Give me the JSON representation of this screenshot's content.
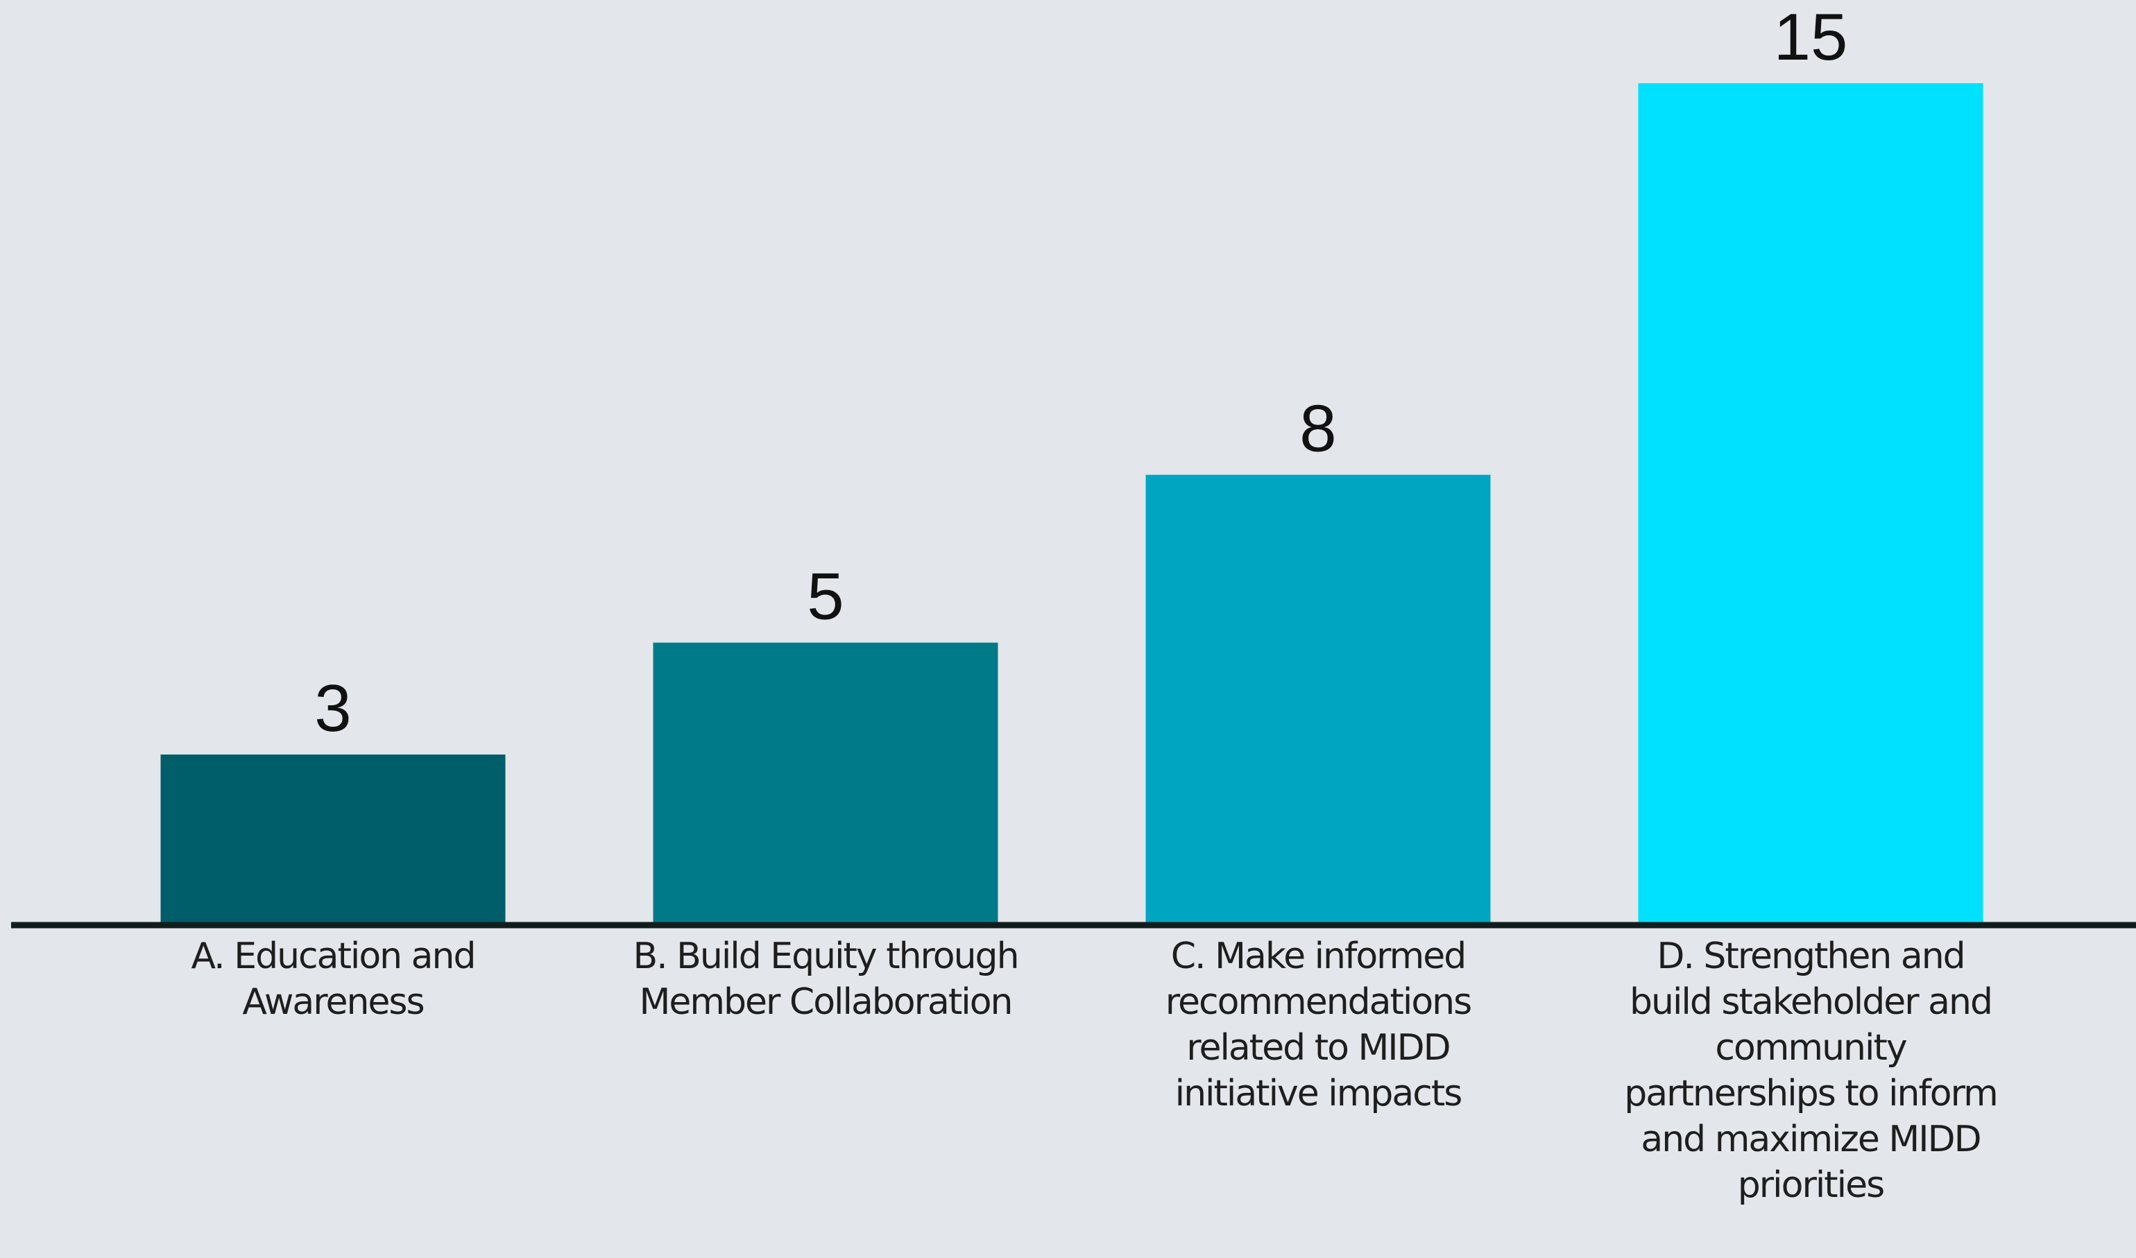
{
  "chart_data": {
    "type": "bar",
    "categories": [
      "A. Education and Awareness",
      "B. Build Equity through Member Collaboration",
      "C. Make informed recommendations related to MIDD initiative impacts",
      "D. Strengthen and build stakeholder and community partnerships to inform and maximize MIDD priorities"
    ],
    "values": [
      3,
      5,
      8,
      15
    ],
    "value_labels": [
      "3",
      "5",
      "8",
      "15"
    ],
    "colors": [
      "#005e6b",
      "#007a88",
      "#00a6c1",
      "#00e0ff"
    ],
    "title": "",
    "xlabel": "",
    "ylabel": "",
    "ylim": [
      0,
      15
    ],
    "grid": false,
    "legend": "none",
    "axis_color": "#111e1e",
    "background": "#e3e6ea"
  }
}
